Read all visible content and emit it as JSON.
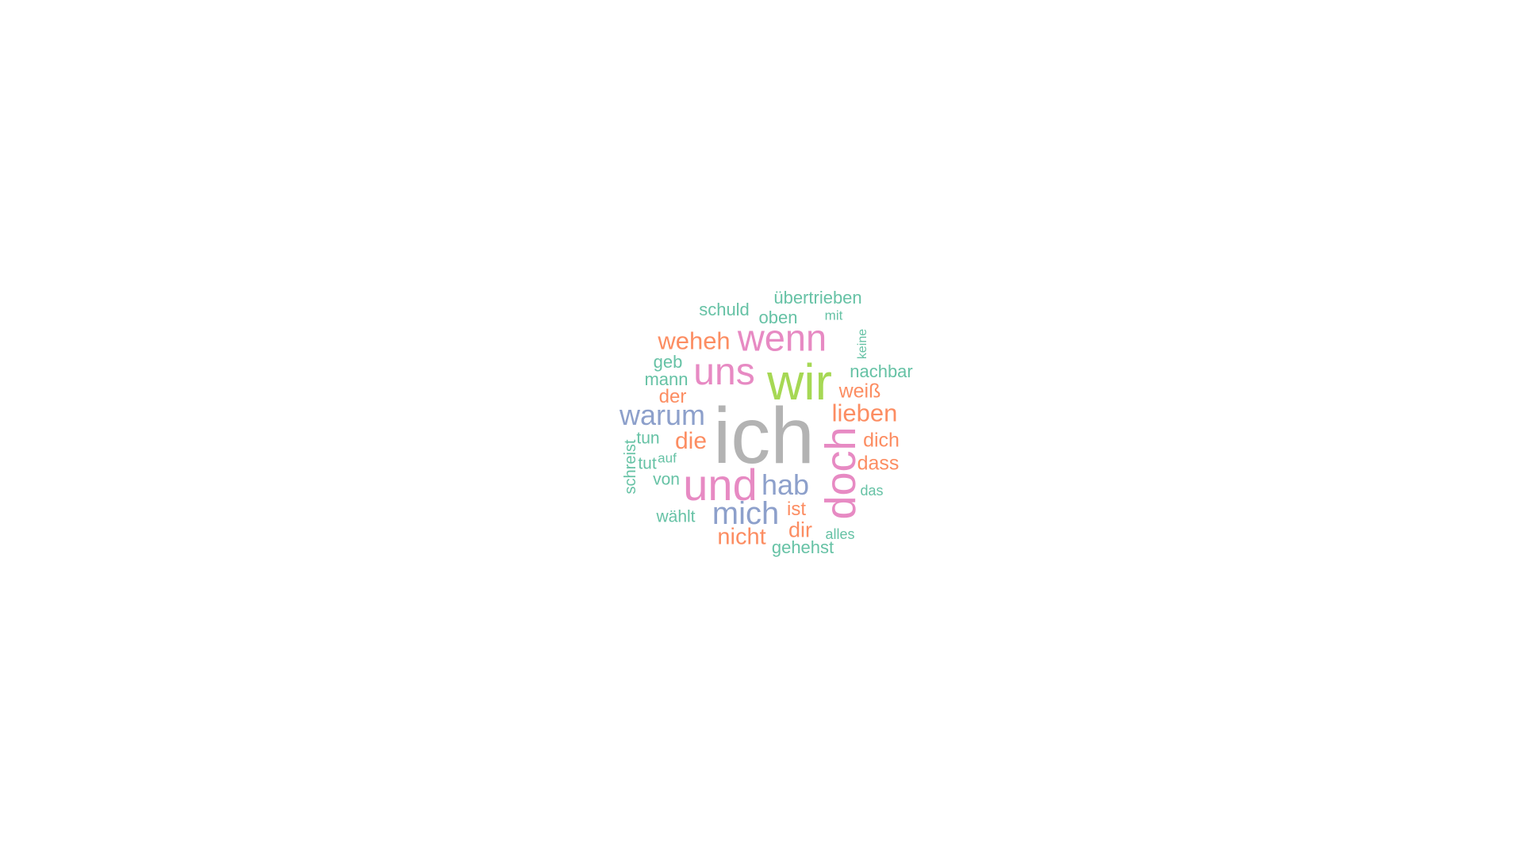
{
  "palette": {
    "gray": "#b3b3b3",
    "lime": "#a6d854",
    "pink": "#e78ac3",
    "blue": "#8da0cb",
    "orange": "#fc8d62",
    "teal": "#66c2a5"
  },
  "words": [
    {
      "text": "ich",
      "color": "#b3b3b3"
    },
    {
      "text": "wir",
      "color": "#a6d854"
    },
    {
      "text": "doch",
      "color": "#e78ac3"
    },
    {
      "text": "und",
      "color": "#e78ac3"
    },
    {
      "text": "uns",
      "color": "#e78ac3"
    },
    {
      "text": "wenn",
      "color": "#e78ac3"
    },
    {
      "text": "mich",
      "color": "#8da0cb"
    },
    {
      "text": "hab",
      "color": "#8da0cb"
    },
    {
      "text": "warum",
      "color": "#8da0cb"
    },
    {
      "text": "weheh",
      "color": "#fc8d62"
    },
    {
      "text": "lieben",
      "color": "#fc8d62"
    },
    {
      "text": "nicht",
      "color": "#fc8d62"
    },
    {
      "text": "die",
      "color": "#fc8d62"
    },
    {
      "text": "dich",
      "color": "#fc8d62"
    },
    {
      "text": "dass",
      "color": "#fc8d62"
    },
    {
      "text": "dir",
      "color": "#fc8d62"
    },
    {
      "text": "weiß",
      "color": "#fc8d62"
    },
    {
      "text": "der",
      "color": "#fc8d62"
    },
    {
      "text": "ist",
      "color": "#fc8d62"
    },
    {
      "text": "übertrieben",
      "color": "#66c2a5"
    },
    {
      "text": "schuld",
      "color": "#66c2a5"
    },
    {
      "text": "oben",
      "color": "#66c2a5"
    },
    {
      "text": "nachbar",
      "color": "#66c2a5"
    },
    {
      "text": "mann",
      "color": "#66c2a5"
    },
    {
      "text": "geb",
      "color": "#66c2a5"
    },
    {
      "text": "gehehst",
      "color": "#66c2a5"
    },
    {
      "text": "wählt",
      "color": "#66c2a5"
    },
    {
      "text": "von",
      "color": "#66c2a5"
    },
    {
      "text": "tun",
      "color": "#66c2a5"
    },
    {
      "text": "tut",
      "color": "#66c2a5"
    },
    {
      "text": "schreist",
      "color": "#66c2a5"
    },
    {
      "text": "mit",
      "color": "#66c2a5"
    },
    {
      "text": "keine",
      "color": "#66c2a5"
    },
    {
      "text": "auf",
      "color": "#66c2a5"
    },
    {
      "text": "das",
      "color": "#66c2a5"
    },
    {
      "text": "alles",
      "color": "#66c2a5"
    }
  ]
}
